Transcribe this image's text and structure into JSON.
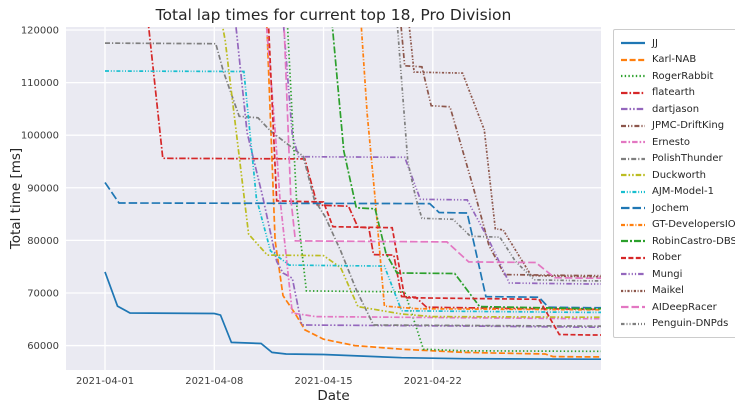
{
  "chart_data": {
    "type": "line",
    "title": "Total lap times for current top 18, Pro Division",
    "xlabel": "Date",
    "ylabel": "Total time [ms]",
    "ylim": [
      55300,
      120600
    ],
    "grid": true,
    "legend_position": "right",
    "plot_background": "#eaeaf2",
    "grid_color": "#ffffff",
    "yticks": [
      60000,
      70000,
      80000,
      90000,
      100000,
      110000,
      120000
    ],
    "xticks": [
      {
        "day": 1,
        "label": "2021-04-01"
      },
      {
        "day": 8,
        "label": "2021-04-08"
      },
      {
        "day": 15,
        "label": "2021-04-15"
      },
      {
        "day": 22,
        "label": "2021-04-22"
      }
    ],
    "x_note": "x = day index, 1 = 2021-04-01; axis extends past 2021-04-22 to about 2021-05-02; values above 120000 are clipped at plot top",
    "series": [
      {
        "name": "JJ",
        "color": "#1f77b4",
        "dash": "",
        "points": [
          [
            1,
            74000
          ],
          [
            1.8,
            67500
          ],
          [
            2.6,
            66200
          ],
          [
            8,
            66100
          ],
          [
            8.4,
            65800
          ],
          [
            9.1,
            60600
          ],
          [
            11,
            60400
          ],
          [
            11.7,
            58700
          ],
          [
            12.6,
            58400
          ],
          [
            15,
            58300
          ],
          [
            20,
            57700
          ],
          [
            24,
            57500
          ],
          [
            32,
            57400
          ]
        ]
      },
      {
        "name": "Karl-NAB",
        "color": "#ff7f0e",
        "dash": "6,2.6",
        "points": [
          [
            1,
            126000
          ],
          [
            11.3,
            126000
          ],
          [
            11.9,
            80000
          ],
          [
            12.4,
            69500
          ],
          [
            13.2,
            66000
          ],
          [
            13.8,
            63000
          ],
          [
            15,
            61200
          ],
          [
            17,
            60000
          ],
          [
            20,
            59300
          ],
          [
            24,
            58700
          ],
          [
            29.2,
            58400
          ],
          [
            29.7,
            57900
          ],
          [
            32,
            57850
          ]
        ]
      },
      {
        "name": "RogerRabbit",
        "color": "#2ca02c",
        "dash": "1.4,2.3",
        "points": [
          [
            1,
            126000
          ],
          [
            12.6,
            126000
          ],
          [
            13.3,
            86000
          ],
          [
            13.9,
            70400
          ],
          [
            20.2,
            70200
          ],
          [
            21.4,
            59300
          ],
          [
            24,
            59000
          ],
          [
            32,
            58900
          ]
        ]
      },
      {
        "name": "flatearth",
        "color": "#d62728",
        "dash": "6.5,2,1.6,2",
        "points": [
          [
            1,
            126000
          ],
          [
            3.6,
            126000
          ],
          [
            4.7,
            95600
          ],
          [
            13.8,
            95500
          ],
          [
            14.6,
            86700
          ],
          [
            16.6,
            86500
          ],
          [
            17.2,
            82500
          ],
          [
            17.9,
            82400
          ],
          [
            18.2,
            77300
          ],
          [
            19.5,
            77200
          ],
          [
            20,
            69300
          ],
          [
            20.9,
            69200
          ],
          [
            21.6,
            67300
          ],
          [
            26,
            67100
          ],
          [
            32,
            66900
          ]
        ]
      },
      {
        "name": "dartjason",
        "color": "#9467bd",
        "dash": "6.5,2,1.6,2,1.6,2",
        "points": [
          [
            1,
            126000
          ],
          [
            9.2,
            126000
          ],
          [
            10.1,
            100500
          ],
          [
            11.1,
            88300
          ],
          [
            12,
            76000
          ],
          [
            12.4,
            73800
          ],
          [
            13,
            72800
          ],
          [
            13.6,
            63900
          ],
          [
            25,
            63700
          ],
          [
            32,
            63500
          ]
        ]
      },
      {
        "name": "JPMC-DriftKing",
        "color": "#8c564b",
        "dash": "5,2,1.2,2,1.2,2",
        "points": [
          [
            1,
            126000
          ],
          [
            19.8,
            126000
          ],
          [
            20.2,
            113200
          ],
          [
            21.3,
            113000
          ],
          [
            21.9,
            105600
          ],
          [
            23.1,
            105400
          ],
          [
            24.6,
            90000
          ],
          [
            25.6,
            79000
          ],
          [
            26.6,
            73500
          ],
          [
            32,
            73300
          ]
        ]
      },
      {
        "name": "Ernesto",
        "color": "#e377c2",
        "dash": "5.5,2,1.6,2",
        "points": [
          [
            1,
            126000
          ],
          [
            11.2,
            126000
          ],
          [
            11.9,
            101000
          ],
          [
            12.2,
            88300
          ],
          [
            13,
            66200
          ],
          [
            14.5,
            65500
          ],
          [
            32,
            65100
          ]
        ]
      },
      {
        "name": "PolishThunder",
        "color": "#7f7f7f",
        "dash": "5,2,1.2,2",
        "points": [
          [
            1,
            117500
          ],
          [
            8.1,
            117400
          ],
          [
            8.6,
            112000
          ],
          [
            9.6,
            103600
          ],
          [
            10.8,
            103300
          ],
          [
            11.6,
            100800
          ],
          [
            13.7,
            96000
          ],
          [
            14.4,
            87800
          ],
          [
            15.1,
            84500
          ],
          [
            16.1,
            78000
          ],
          [
            17.1,
            70600
          ],
          [
            18.2,
            63900
          ],
          [
            32,
            63700
          ]
        ]
      },
      {
        "name": "Duckworth",
        "color": "#bcbd22",
        "dash": "5.5,2,1.6,2,1.6,2",
        "points": [
          [
            1,
            126000
          ],
          [
            8.2,
            126000
          ],
          [
            8.7,
            118000
          ],
          [
            10.2,
            81200
          ],
          [
            11.4,
            77200
          ],
          [
            15,
            77100
          ],
          [
            16.1,
            74800
          ],
          [
            17.2,
            67400
          ],
          [
            20,
            66000
          ],
          [
            22,
            65500
          ],
          [
            32,
            65400
          ]
        ]
      },
      {
        "name": "AJM-Model-1",
        "color": "#17becf",
        "dash": "4,1.8,1,1.8,1,1.8",
        "points": [
          [
            1,
            112200
          ],
          [
            9.9,
            112100
          ],
          [
            10.7,
            88000
          ],
          [
            11.6,
            78000
          ],
          [
            12.8,
            75300
          ],
          [
            18.9,
            75100
          ],
          [
            20,
            66600
          ],
          [
            32,
            66300
          ]
        ]
      },
      {
        "name": "Jochem",
        "color": "#1f77b4",
        "dash": "8.5,3",
        "points": [
          [
            1,
            91000
          ],
          [
            1.9,
            87100
          ],
          [
            21.8,
            87000
          ],
          [
            22.4,
            85300
          ],
          [
            24.2,
            85200
          ],
          [
            25.4,
            69300
          ],
          [
            28.8,
            69200
          ],
          [
            29.4,
            67300
          ],
          [
            32,
            67200
          ]
        ]
      },
      {
        "name": "GT-DevelopersIO",
        "color": "#ff7f0e",
        "dash": "4,1.8,1,1.8",
        "points": [
          [
            1,
            126000
          ],
          [
            17.3,
            126000
          ],
          [
            17.8,
            104000
          ],
          [
            18.3,
            88000
          ],
          [
            18.9,
            67500
          ],
          [
            21,
            67000
          ],
          [
            32,
            66800
          ]
        ]
      },
      {
        "name": "RobinCastro-DBS",
        "color": "#2ca02c",
        "dash": "7,2,2,2",
        "points": [
          [
            1,
            126000
          ],
          [
            15.4,
            126000
          ],
          [
            16.3,
            97000
          ],
          [
            17.1,
            86200
          ],
          [
            18.3,
            86000
          ],
          [
            19,
            77500
          ],
          [
            19.7,
            73800
          ],
          [
            23.4,
            73700
          ],
          [
            25,
            67400
          ],
          [
            32,
            67000
          ]
        ]
      },
      {
        "name": "Rober",
        "color": "#d62728",
        "dash": "5,2.4",
        "points": [
          [
            1,
            126000
          ],
          [
            11.4,
            126000
          ],
          [
            12,
            87500
          ],
          [
            15,
            87300
          ],
          [
            15.6,
            82600
          ],
          [
            19.4,
            82400
          ],
          [
            20.2,
            69100
          ],
          [
            28.8,
            68800
          ],
          [
            30.1,
            62100
          ],
          [
            32,
            62000
          ]
        ]
      },
      {
        "name": "Mungi",
        "color": "#9467bd",
        "dash": "5.5,2,1.2,2,1.2,2,1.2,2",
        "points": [
          [
            1,
            126000
          ],
          [
            12.3,
            126000
          ],
          [
            13,
            100000
          ],
          [
            13.4,
            95900
          ],
          [
            20.2,
            95800
          ],
          [
            21.2,
            87800
          ],
          [
            24.2,
            87700
          ],
          [
            25.6,
            80000
          ],
          [
            26.9,
            71900
          ],
          [
            32,
            71700
          ]
        ]
      },
      {
        "name": "Maikel",
        "color": "#8c564b",
        "dash": "2.2,1.6,1,1.6",
        "points": [
          [
            1,
            126000
          ],
          [
            20.3,
            126000
          ],
          [
            20.8,
            112000
          ],
          [
            23.9,
            111800
          ],
          [
            25.3,
            101000
          ],
          [
            26,
            82200
          ],
          [
            26.5,
            82000
          ],
          [
            28.3,
            73300
          ],
          [
            32,
            73100
          ]
        ]
      },
      {
        "name": "AIDeepRacer",
        "color": "#e377c2",
        "dash": "7.5,3",
        "points": [
          [
            1,
            126000
          ],
          [
            12.4,
            126000
          ],
          [
            12.9,
            88000
          ],
          [
            13.2,
            79900
          ],
          [
            22.9,
            79700
          ],
          [
            24.3,
            75900
          ],
          [
            28.6,
            75800
          ],
          [
            29.8,
            72900
          ],
          [
            32,
            72800
          ]
        ]
      },
      {
        "name": "Penguin-DNPds",
        "color": "#7f7f7f",
        "dash": "3.5,2,1,2,1,2",
        "points": [
          [
            1,
            126000
          ],
          [
            19.6,
            126000
          ],
          [
            20.4,
            95000
          ],
          [
            20.9,
            88200
          ],
          [
            21.3,
            84200
          ],
          [
            23.3,
            84000
          ],
          [
            24.4,
            80800
          ],
          [
            26.3,
            80600
          ],
          [
            27.3,
            76000
          ],
          [
            28.5,
            72500
          ],
          [
            32,
            72300
          ]
        ]
      }
    ]
  },
  "text_colors": {
    "title": "#262626",
    "ticks": "#3d3d3d",
    "axis_labels": "#262626"
  }
}
